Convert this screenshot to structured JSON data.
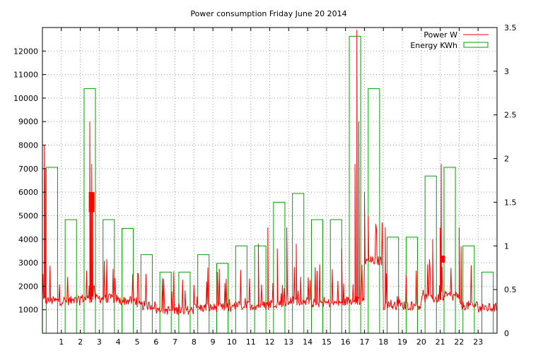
{
  "chart_data": {
    "type": "bar",
    "title": "Power consumption Friday June 20 2014",
    "xlabel": "",
    "ylabel": "",
    "y2label": "",
    "x_ticks": [
      "1",
      "2",
      "3",
      "4",
      "5",
      "6",
      "7",
      "8",
      "9",
      "10",
      "11",
      "12",
      "13",
      "14",
      "15",
      "16",
      "17",
      "18",
      "19",
      "20",
      "21",
      "22",
      "23"
    ],
    "xlim": [
      0,
      24
    ],
    "ylim": [
      0,
      13000
    ],
    "y_ticks": [
      1000,
      2000,
      3000,
      4000,
      5000,
      6000,
      7000,
      8000,
      9000,
      10000,
      11000,
      12000
    ],
    "y2lim": [
      0,
      3.5
    ],
    "y2_ticks": [
      0,
      0.5,
      1,
      1.5,
      2,
      2.5,
      3,
      3.5
    ],
    "y2_tick_labels": [
      "0",
      "0.5",
      "1",
      "1.5",
      "2",
      "2.5",
      "3",
      "3.5"
    ],
    "grid": true,
    "legend_position": "top-right",
    "series": [
      {
        "name": "Energy KWh",
        "axis": "y2",
        "style": "boxes",
        "color": "#00a000",
        "hours": [
          0,
          1,
          2,
          3,
          4,
          5,
          6,
          7,
          8,
          9,
          10,
          11,
          12,
          13,
          14,
          15,
          16,
          17,
          18,
          19,
          20,
          21,
          22,
          23
        ],
        "values": [
          1.9,
          1.3,
          2.8,
          1.3,
          1.2,
          0.9,
          0.7,
          0.7,
          0.9,
          0.8,
          1.0,
          1.0,
          1.5,
          1.6,
          1.3,
          1.3,
          3.4,
          2.8,
          1.1,
          1.1,
          1.8,
          1.9,
          1.0,
          0.7
        ]
      },
      {
        "name": "Power W",
        "axis": "y",
        "style": "line",
        "color": "#ff0000",
        "hour_baseline": [
          1300,
          1300,
          1400,
          1400,
          1300,
          1100,
          900,
          900,
          1000,
          1000,
          1100,
          1100,
          1200,
          1300,
          1200,
          1200,
          1300,
          3000,
          1100,
          1100,
          1400,
          1500,
          1100,
          1000
        ],
        "peaks": [
          {
            "x": 0.1,
            "y": 8000
          },
          {
            "x": 0.15,
            "y": 7000
          },
          {
            "x": 2.5,
            "y": 9000
          },
          {
            "x": 2.6,
            "y": 7200
          },
          {
            "x": 2.55,
            "y": 6000
          },
          {
            "x": 2.65,
            "y": 5200
          },
          {
            "x": 11.9,
            "y": 4500
          },
          {
            "x": 12.9,
            "y": 4500
          },
          {
            "x": 16.6,
            "y": 12900
          },
          {
            "x": 16.7,
            "y": 9000
          },
          {
            "x": 16.5,
            "y": 7200
          },
          {
            "x": 17.0,
            "y": 6000
          },
          {
            "x": 17.2,
            "y": 5000
          },
          {
            "x": 20.6,
            "y": 4000
          },
          {
            "x": 21.0,
            "y": 4500
          },
          {
            "x": 21.05,
            "y": 7200
          },
          {
            "x": 22.0,
            "y": 4500
          },
          {
            "x": 22.1,
            "y": 3700
          },
          {
            "x": 11.4,
            "y": 3800
          },
          {
            "x": 12.4,
            "y": 3600
          },
          {
            "x": 15.8,
            "y": 3600
          },
          {
            "x": 18.1,
            "y": 4500
          },
          {
            "x": 13.4,
            "y": 3800
          }
        ]
      }
    ]
  }
}
